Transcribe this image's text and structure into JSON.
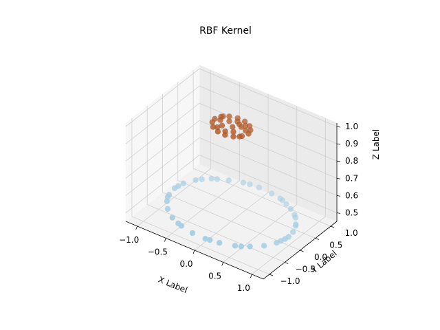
{
  "chart_data": {
    "type": "scatter",
    "projection": "3d",
    "title": "RBF Kernel",
    "xlabel": "X Label",
    "ylabel": "Y Label",
    "zlabel": "Z Label",
    "xlim": [
      -1.2,
      1.2
    ],
    "ylim": [
      -1.2,
      1.2
    ],
    "zlim": [
      0.45,
      1.02
    ],
    "xticks": [
      "−1.0",
      "−0.5",
      "0.0",
      "0.5",
      "1.0"
    ],
    "xtick_values": [
      -1.0,
      -0.5,
      0.0,
      0.5,
      1.0
    ],
    "yticks": [
      "−1.0",
      "−0.5",
      "0.0",
      "0.5",
      "1.0"
    ],
    "ytick_values": [
      -1.0,
      -0.5,
      0.0,
      0.5,
      1.0
    ],
    "zticks": [
      "0.5",
      "0.6",
      "0.7",
      "0.8",
      "0.9",
      "1.0"
    ],
    "ztick_values": [
      0.5,
      0.6,
      0.7,
      0.8,
      0.9,
      1.0
    ],
    "grid": true,
    "colors": {
      "outer": "#a6cee3",
      "inner": "#b15928"
    },
    "series": [
      {
        "color": "#a6cee3",
        "points": [
          [
            1.0,
            0.0,
            0.5
          ],
          [
            0.98,
            0.18,
            0.5
          ],
          [
            0.92,
            0.38,
            0.5
          ],
          [
            0.8,
            0.6,
            0.5
          ],
          [
            0.62,
            0.78,
            0.5
          ],
          [
            0.4,
            0.92,
            0.5
          ],
          [
            0.18,
            0.98,
            0.5
          ],
          [
            -0.05,
            1.0,
            0.5
          ],
          [
            -0.3,
            0.95,
            0.5
          ],
          [
            -0.5,
            0.85,
            0.5
          ],
          [
            -0.72,
            0.7,
            0.5
          ],
          [
            -0.88,
            0.48,
            0.5
          ],
          [
            -0.97,
            0.25,
            0.5
          ],
          [
            -1.0,
            0.02,
            0.5
          ],
          [
            -0.97,
            -0.22,
            0.5
          ],
          [
            -0.9,
            -0.42,
            0.5
          ],
          [
            -0.78,
            -0.62,
            0.5
          ],
          [
            -0.6,
            -0.8,
            0.5
          ],
          [
            -0.38,
            -0.92,
            0.5
          ],
          [
            -0.15,
            -0.99,
            0.5
          ],
          [
            0.08,
            -1.0,
            0.5
          ],
          [
            0.3,
            -0.95,
            0.5
          ],
          [
            0.52,
            -0.85,
            0.5
          ],
          [
            0.7,
            -0.7,
            0.5
          ],
          [
            0.85,
            -0.52,
            0.5
          ],
          [
            0.95,
            -0.3,
            0.5
          ],
          [
            0.99,
            -0.1,
            0.5
          ],
          [
            0.15,
            -0.98,
            0.5
          ],
          [
            -0.65,
            0.75,
            0.5
          ],
          [
            0.9,
            0.42,
            0.5
          ],
          [
            -0.95,
            -0.3,
            0.5
          ],
          [
            0.6,
            -0.8,
            0.5
          ],
          [
            -0.82,
            0.57,
            0.5
          ],
          [
            0.35,
            0.94,
            0.5
          ],
          [
            -0.45,
            -0.89,
            0.5
          ],
          [
            0.75,
            0.66,
            0.5
          ],
          [
            -0.99,
            0.12,
            0.5
          ],
          [
            0.97,
            -0.2,
            0.5
          ],
          [
            -0.2,
            0.98,
            0.5
          ],
          [
            0.5,
            0.86,
            0.5
          ]
        ]
      },
      {
        "color": "#b15928",
        "points": [
          [
            0.3,
            0.0,
            1.0
          ],
          [
            0.27,
            0.12,
            1.0
          ],
          [
            0.2,
            0.22,
            1.0
          ],
          [
            0.08,
            0.29,
            1.0
          ],
          [
            -0.05,
            0.3,
            1.0
          ],
          [
            -0.17,
            0.25,
            1.0
          ],
          [
            -0.26,
            0.15,
            1.0
          ],
          [
            -0.3,
            0.02,
            1.0
          ],
          [
            -0.28,
            -0.1,
            1.0
          ],
          [
            -0.2,
            -0.22,
            1.0
          ],
          [
            -0.08,
            -0.29,
            1.0
          ],
          [
            0.05,
            -0.3,
            1.0
          ],
          [
            0.17,
            -0.25,
            1.0
          ],
          [
            0.26,
            -0.14,
            1.0
          ],
          [
            0.12,
            0.1,
            1.0
          ],
          [
            -0.1,
            0.12,
            1.0
          ],
          [
            -0.12,
            -0.08,
            1.0
          ],
          [
            0.1,
            -0.12,
            1.0
          ],
          [
            0.02,
            0.0,
            1.0
          ],
          [
            0.22,
            0.05,
            1.0
          ],
          [
            -0.22,
            0.05,
            1.0
          ],
          [
            0.0,
            0.2,
            1.0
          ],
          [
            0.0,
            -0.2,
            1.0
          ],
          [
            0.15,
            0.18,
            1.0
          ],
          [
            -0.15,
            -0.18,
            1.0
          ],
          [
            0.24,
            -0.18,
            1.0
          ],
          [
            -0.24,
            0.18,
            1.0
          ],
          [
            0.06,
            0.15,
            1.0
          ]
        ]
      }
    ]
  }
}
